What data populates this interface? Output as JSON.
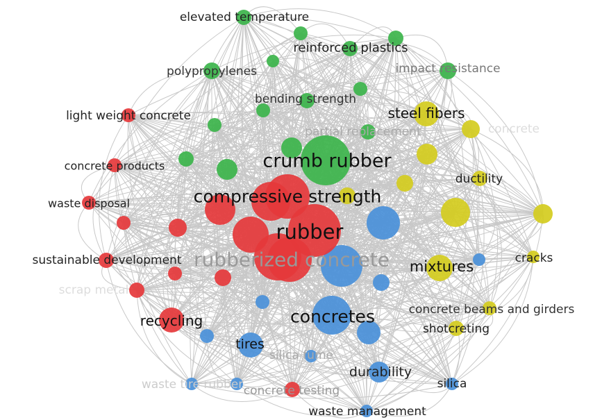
{
  "colors": {
    "red": "#e5383b",
    "green": "#3cb44b",
    "blue": "#4a90d9",
    "yellow": "#d4cc1e",
    "edge": "#c8c8c8"
  },
  "chart_data": {
    "type": "network",
    "clusters": [
      "red",
      "green",
      "blue",
      "yellow"
    ],
    "nodes": [
      {
        "id": "crumb-rubber",
        "label": "crumb rubber",
        "cluster": "green"
      },
      {
        "id": "elevated-temperature",
        "label": "elevated temperature",
        "cluster": "green"
      },
      {
        "id": "reinforced-plastics",
        "label": "reinforced plastics",
        "cluster": "green"
      },
      {
        "id": "polypropylenes",
        "label": "polypropylenes",
        "cluster": "green"
      },
      {
        "id": "impact-resistance",
        "label": "impact resistance",
        "cluster": "green"
      },
      {
        "id": "bending-strength",
        "label": "bending strength",
        "cluster": "green"
      },
      {
        "id": "partial-replacement",
        "label": "partial replacement",
        "cluster": "green"
      },
      {
        "id": "compressive-strength",
        "label": "compressive strength",
        "cluster": "red"
      },
      {
        "id": "rubber",
        "label": "rubber",
        "cluster": "red"
      },
      {
        "id": "rubberized-concrete",
        "label": "rubberized concrete",
        "cluster": "red"
      },
      {
        "id": "light-weight-concrete",
        "label": "light weight concrete",
        "cluster": "red"
      },
      {
        "id": "concrete-products",
        "label": "concrete products",
        "cluster": "red"
      },
      {
        "id": "waste-disposal",
        "label": "waste disposal",
        "cluster": "red"
      },
      {
        "id": "sustainable-development",
        "label": "sustainable development",
        "cluster": "red"
      },
      {
        "id": "scrap-metal",
        "label": "scrap metal",
        "cluster": "red"
      },
      {
        "id": "recycling",
        "label": "recycling",
        "cluster": "red"
      },
      {
        "id": "concrete-testing",
        "label": "concrete testing",
        "cluster": "red"
      },
      {
        "id": "concretes",
        "label": "concretes",
        "cluster": "blue"
      },
      {
        "id": "tires",
        "label": "tires",
        "cluster": "blue"
      },
      {
        "id": "silica-fume",
        "label": "silica fume",
        "cluster": "blue"
      },
      {
        "id": "durability",
        "label": "durability",
        "cluster": "blue"
      },
      {
        "id": "silica",
        "label": "silica",
        "cluster": "blue"
      },
      {
        "id": "waste-tire-rubber",
        "label": "waste tire rubber",
        "cluster": "blue"
      },
      {
        "id": "waste-management",
        "label": "waste management",
        "cluster": "blue"
      },
      {
        "id": "steel-fibers",
        "label": "steel fibers",
        "cluster": "yellow"
      },
      {
        "id": "concrete",
        "label": "concrete",
        "cluster": "yellow"
      },
      {
        "id": "ductility",
        "label": "ductility",
        "cluster": "yellow"
      },
      {
        "id": "mixtures",
        "label": "mixtures",
        "cluster": "yellow"
      },
      {
        "id": "cracks",
        "label": "cracks",
        "cluster": "yellow"
      },
      {
        "id": "concrete-beams-and-girders",
        "label": "concrete beams and girders",
        "cluster": "yellow"
      },
      {
        "id": "shotcreting",
        "label": "shotcreting",
        "cluster": "yellow"
      }
    ]
  }
}
